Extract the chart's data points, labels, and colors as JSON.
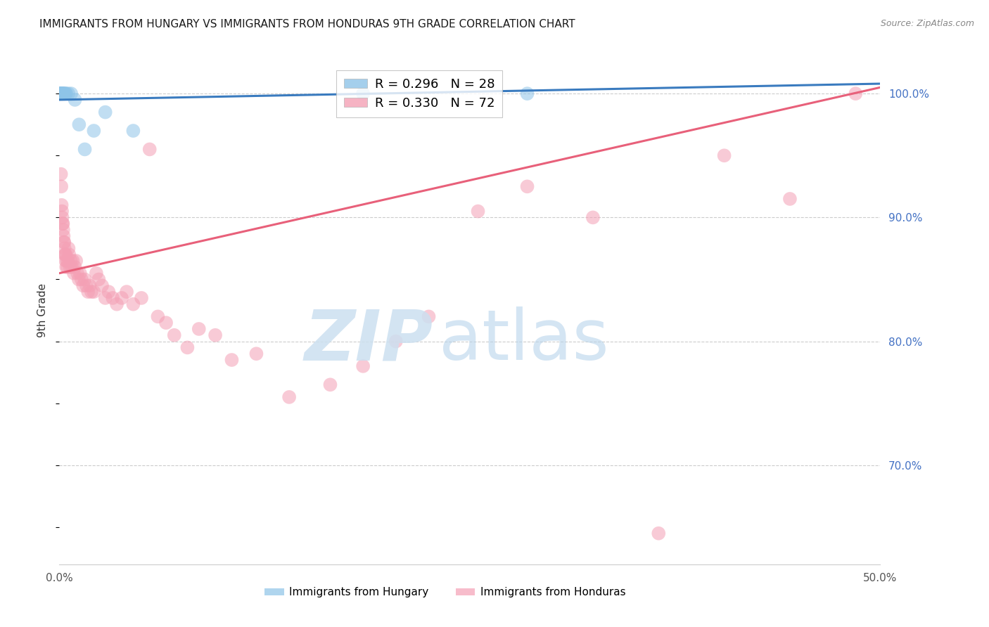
{
  "title": "IMMIGRANTS FROM HUNGARY VS IMMIGRANTS FROM HONDURAS 9TH GRADE CORRELATION CHART",
  "source": "Source: ZipAtlas.com",
  "ylabel": "9th Grade",
  "xmin": 0.0,
  "xmax": 50.0,
  "ymin": 62.0,
  "ymax": 103.0,
  "yticks": [
    70.0,
    80.0,
    90.0,
    100.0
  ],
  "ytick_labels": [
    "70.0%",
    "80.0%",
    "90.0%",
    "100.0%"
  ],
  "hungary_color": "#8ec4e8",
  "honduras_color": "#f4a0b5",
  "hungary_line_color": "#3a7bbf",
  "honduras_line_color": "#e8607a",
  "legend_hungary_R": 0.296,
  "legend_hungary_N": 28,
  "legend_honduras_R": 0.33,
  "legend_honduras_N": 72,
  "hungary_x": [
    0.05,
    0.08,
    0.09,
    0.1,
    0.11,
    0.12,
    0.13,
    0.14,
    0.15,
    0.16,
    0.18,
    0.2,
    0.22,
    0.25,
    0.28,
    0.32,
    0.38,
    0.42,
    0.55,
    0.72,
    0.95,
    1.2,
    1.55,
    2.1,
    2.8,
    4.5,
    18.5,
    28.5
  ],
  "hungary_y": [
    100.0,
    100.0,
    100.0,
    100.0,
    100.0,
    100.0,
    100.0,
    100.0,
    100.0,
    100.0,
    100.0,
    100.0,
    100.0,
    100.0,
    100.0,
    100.0,
    100.0,
    100.0,
    100.0,
    100.0,
    99.5,
    97.5,
    95.5,
    97.0,
    98.5,
    97.0,
    100.0,
    100.0
  ],
  "honduras_x": [
    0.1,
    0.12,
    0.14,
    0.16,
    0.18,
    0.2,
    0.22,
    0.24,
    0.26,
    0.28,
    0.3,
    0.32,
    0.34,
    0.36,
    0.38,
    0.4,
    0.42,
    0.45,
    0.48,
    0.52,
    0.56,
    0.6,
    0.65,
    0.7,
    0.76,
    0.82,
    0.88,
    0.95,
    1.02,
    1.1,
    1.18,
    1.26,
    1.35,
    1.45,
    1.55,
    1.65,
    1.75,
    1.85,
    1.95,
    2.1,
    2.25,
    2.4,
    2.6,
    2.8,
    3.0,
    3.25,
    3.5,
    3.8,
    4.1,
    4.5,
    5.0,
    5.5,
    6.0,
    6.5,
    7.0,
    7.8,
    8.5,
    9.5,
    10.5,
    12.0,
    14.0,
    16.5,
    18.5,
    20.5,
    22.5,
    25.5,
    28.5,
    32.5,
    36.5,
    40.5,
    44.5,
    48.5
  ],
  "honduras_y": [
    93.5,
    92.5,
    91.0,
    90.5,
    90.0,
    89.5,
    89.5,
    89.0,
    88.5,
    88.0,
    88.0,
    87.5,
    87.0,
    87.0,
    86.5,
    87.0,
    86.0,
    86.5,
    86.0,
    86.5,
    87.5,
    87.0,
    86.0,
    86.5,
    86.0,
    86.5,
    85.5,
    86.0,
    86.5,
    85.5,
    85.0,
    85.5,
    85.0,
    84.5,
    85.0,
    84.5,
    84.0,
    84.5,
    84.0,
    84.0,
    85.5,
    85.0,
    84.5,
    83.5,
    84.0,
    83.5,
    83.0,
    83.5,
    84.0,
    83.0,
    83.5,
    95.5,
    82.0,
    81.5,
    80.5,
    79.5,
    81.0,
    80.5,
    78.5,
    79.0,
    75.5,
    76.5,
    78.0,
    80.0,
    82.0,
    90.5,
    92.5,
    90.0,
    64.5,
    95.0,
    91.5,
    100.0
  ],
  "hungary_trend_x0": 0.0,
  "hungary_trend_y0": 99.5,
  "hungary_trend_x1": 50.0,
  "hungary_trend_y1": 100.8,
  "honduras_trend_x0": 0.0,
  "honduras_trend_y0": 85.5,
  "honduras_trend_x1": 50.0,
  "honduras_trend_y1": 100.5
}
